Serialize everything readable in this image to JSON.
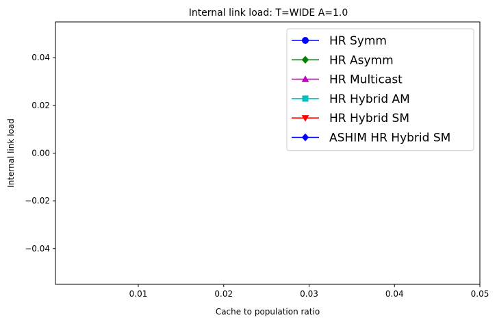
{
  "chart_data": {
    "type": "line",
    "title": "Internal link load: T=WIDE A=1.0",
    "xlabel": "Cache to population ratio",
    "ylabel": "Internal link load",
    "xlim": [
      0.0003,
      0.05
    ],
    "ylim": [
      -0.055,
      0.055
    ],
    "xticks": [
      0.01,
      0.02,
      0.03,
      0.04,
      0.05
    ],
    "xtick_labels": [
      "0.01",
      "0.02",
      "0.03",
      "0.04",
      "0.05"
    ],
    "yticks": [
      0.04,
      0.02,
      0.0,
      -0.02,
      -0.04
    ],
    "ytick_labels": [
      "0.04",
      "0.02",
      "0.00",
      "−0.02",
      "−0.04"
    ],
    "grid": false,
    "legend_position": "top-right",
    "series": [
      {
        "name": "HR Symm",
        "color": "#0000ff",
        "marker": "circle",
        "x": [],
        "y": []
      },
      {
        "name": "HR Asymm",
        "color": "#008000",
        "marker": "diamond",
        "x": [],
        "y": []
      },
      {
        "name": "HR Multicast",
        "color": "#bf00bf",
        "marker": "triangle-up",
        "x": [],
        "y": []
      },
      {
        "name": "HR Hybrid AM",
        "color": "#00bfbf",
        "marker": "square",
        "x": [],
        "y": []
      },
      {
        "name": "HR Hybrid SM",
        "color": "#ff0000",
        "marker": "triangle-down",
        "x": [],
        "y": []
      },
      {
        "name": "ASHIM HR Hybrid SM",
        "color": "#0000ff",
        "marker": "diamond",
        "x": [],
        "y": []
      }
    ]
  }
}
